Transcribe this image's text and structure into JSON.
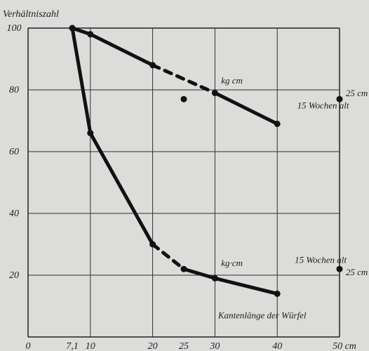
{
  "chart_data": {
    "type": "line",
    "y_axis_title": "Verhältniszahl",
    "x_axis_title": "Kantenlänge der Würfel",
    "x_ticks": [
      {
        "value": 0,
        "label": "0"
      },
      {
        "value": 7.1,
        "label": "7,1"
      },
      {
        "value": 10,
        "label": "10"
      },
      {
        "value": 20,
        "label": "20"
      },
      {
        "value": 25,
        "label": "25"
      },
      {
        "value": 30,
        "label": "30"
      },
      {
        "value": 40,
        "label": "40"
      },
      {
        "value": 50,
        "label": "50 cm"
      }
    ],
    "y_ticks": [
      {
        "value": 20,
        "label": "20"
      },
      {
        "value": 40,
        "label": "40"
      },
      {
        "value": 60,
        "label": "60"
      },
      {
        "value": 80,
        "label": "80"
      },
      {
        "value": 100,
        "label": "100"
      }
    ],
    "xlim": [
      0,
      50
    ],
    "ylim": [
      0,
      100
    ],
    "grid": true,
    "series": [
      {
        "values": [
          {
            "x": 7.1,
            "y": 100
          },
          {
            "x": 10,
            "y": 98
          },
          {
            "x": 20,
            "y": 88
          },
          {
            "x": 30,
            "y": 79
          },
          {
            "x": 40,
            "y": 69
          }
        ],
        "dashed_segments": [
          [
            2,
            3
          ]
        ]
      },
      {
        "values": [
          {
            "x": 7.1,
            "y": 100
          },
          {
            "x": 10,
            "y": 66
          },
          {
            "x": 20,
            "y": 30
          },
          {
            "x": 25,
            "y": 22
          },
          {
            "x": 30,
            "y": 19
          },
          {
            "x": 40,
            "y": 14
          }
        ],
        "dashed_segments": [
          [
            2,
            3
          ]
        ]
      }
    ],
    "extra_points": [
      {
        "x": 25,
        "y": 77
      },
      {
        "x": 50,
        "y": 77
      },
      {
        "x": 50,
        "y": 22
      }
    ],
    "annotations": [
      {
        "text": "kg cm",
        "x": 31,
        "y": 82
      },
      {
        "text": "15 Wochen alt",
        "x": 43.2,
        "y": 74
      },
      {
        "text": "25 cm",
        "x": 51,
        "y": 78
      },
      {
        "text": "kg·cm",
        "x": 31,
        "y": 23
      },
      {
        "text": "15 Wochen alt",
        "x": 42.8,
        "y": 24
      },
      {
        "text": "25 cm",
        "x": 51,
        "y": 20
      },
      {
        "text": "Kantenlänge der Würfel",
        "x": 30.5,
        "y": 6
      }
    ]
  }
}
